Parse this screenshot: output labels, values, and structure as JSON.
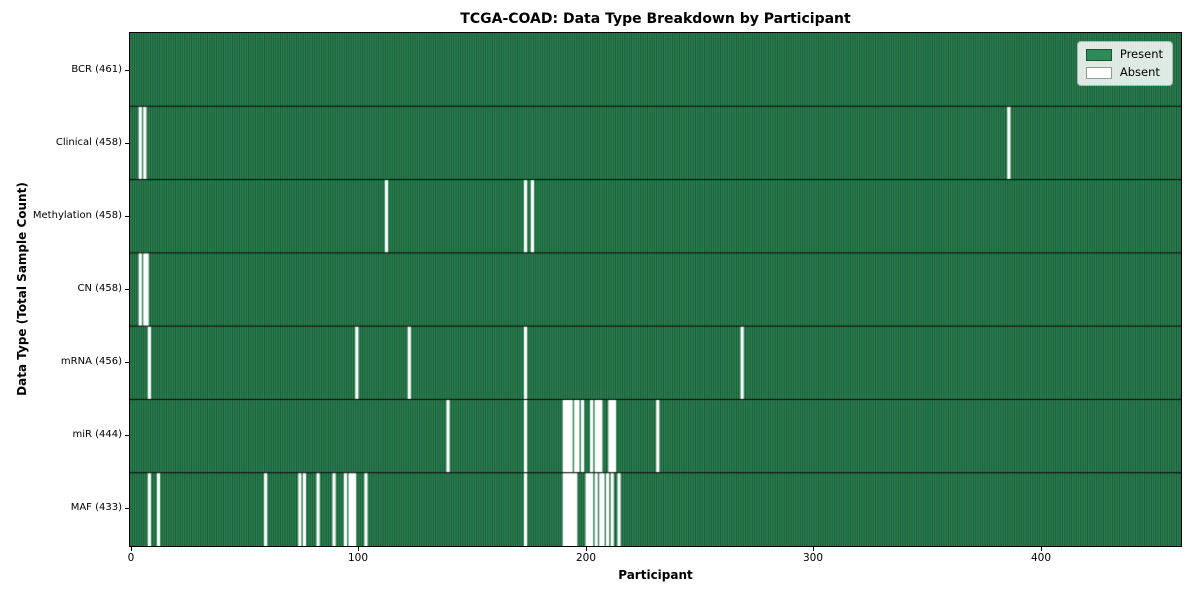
{
  "chart_data": {
    "type": "heatmap",
    "title": "TCGA-COAD: Data Type Breakdown by Participant",
    "xlabel": "Participant",
    "ylabel": "Data Type (Total Sample Count)",
    "n_participants": 461,
    "x_axis_range": [
      0,
      460
    ],
    "x_ticks": [
      "0",
      "100",
      "200",
      "300",
      "400"
    ],
    "x_tick_values": [
      0,
      100,
      200,
      300,
      400
    ],
    "present_color": "#2e8b57",
    "absent_color": "#ffffff",
    "bar_edge_color": "rgba(0,0,0,0.48)",
    "row_divider_color": "#000000",
    "grid": false,
    "legend": {
      "position": "upper right",
      "items": [
        {
          "label": "Present",
          "color": "#2e8b57"
        },
        {
          "label": "Absent",
          "color": "#ffffff"
        }
      ]
    },
    "rows": [
      {
        "label": "BCR (461)",
        "data_type": "BCR",
        "total": 461,
        "absent_participants": []
      },
      {
        "label": "Clinical (458)",
        "data_type": "Clinical",
        "total": 458,
        "absent_participants": [
          4,
          6,
          385
        ]
      },
      {
        "label": "Methylation (458)",
        "data_type": "Methylation",
        "total": 458,
        "absent_participants": [
          112,
          173,
          176
        ]
      },
      {
        "label": "CN (458)",
        "data_type": "CN",
        "total": 458,
        "absent_participants": [
          4,
          6,
          7
        ]
      },
      {
        "label": "mRNA (456)",
        "data_type": "mRNA",
        "total": 456,
        "absent_participants": [
          8,
          99,
          122,
          173,
          268
        ]
      },
      {
        "label": "miR (444)",
        "data_type": "miR",
        "total": 444,
        "absent_participants": [
          139,
          173,
          190,
          191,
          192,
          193,
          195,
          196,
          198,
          202,
          204,
          205,
          206,
          210,
          211,
          212,
          231
        ]
      },
      {
        "label": "MAF (433)",
        "data_type": "MAF",
        "total": 433,
        "absent_participants": [
          8,
          12,
          59,
          74,
          76,
          82,
          89,
          94,
          96,
          97,
          98,
          103,
          173,
          190,
          191,
          192,
          193,
          194,
          195,
          200,
          201,
          202,
          204,
          206,
          207,
          209,
          211,
          214
        ]
      }
    ]
  }
}
